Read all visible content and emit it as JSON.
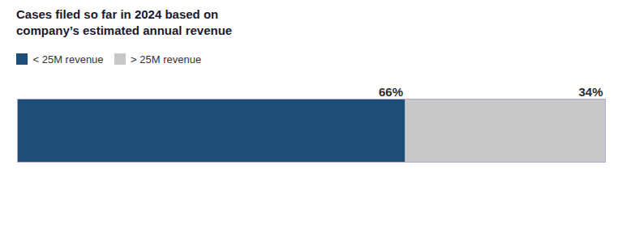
{
  "chart_data": {
    "type": "bar",
    "title": "Cases filed so far in 2024 based on\ncompany’s estimated annual revenue",
    "orientation": "horizontal",
    "stacked": true,
    "categories": [
      null
    ],
    "series": [
      {
        "name": "< 25M revenue",
        "color": "#1e4d78",
        "values": [
          66
        ],
        "value_labels": [
          "66%"
        ]
      },
      {
        "name": "> 25M revenue",
        "color": "#c8c8c8",
        "values": [
          34
        ],
        "value_labels": [
          "34%"
        ]
      }
    ],
    "xlim": [
      0,
      100
    ],
    "data_labels": true,
    "tick_labels": false,
    "grid": false,
    "legend": "upper left"
  }
}
